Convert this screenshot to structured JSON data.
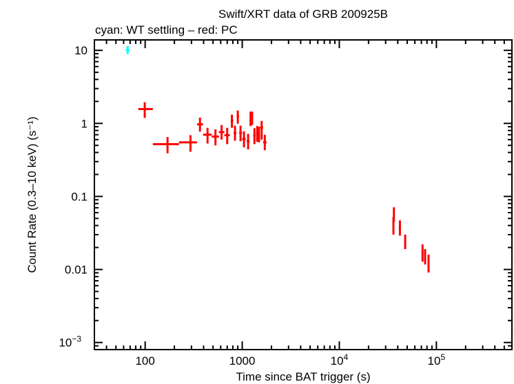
{
  "chart_data": {
    "type": "scatter",
    "title": "Swift/XRT data of GRB 200925B",
    "subtitle": "cyan: WT settling – red: PC",
    "xlabel": "Time since BAT trigger (s)",
    "ylabel": "Count Rate (0.3–10 keV) (s⁻¹)",
    "xscale": "log",
    "yscale": "log",
    "xlim": [
      30,
      600000
    ],
    "ylim": [
      0.0008,
      13.9
    ],
    "xticks": [
      {
        "v": 100,
        "label": "100"
      },
      {
        "v": 1000,
        "label": "1000"
      },
      {
        "v": 10000,
        "label": "10",
        "exp": "4"
      },
      {
        "v": 100000,
        "label": "10",
        "exp": "5"
      }
    ],
    "yticks": [
      {
        "v": 10,
        "label": "10"
      },
      {
        "v": 1,
        "label": "1"
      },
      {
        "v": 0.1,
        "label": "0.1"
      },
      {
        "v": 0.01,
        "label": "0.01"
      },
      {
        "v": 0.001,
        "label": "10",
        "exp": "−3"
      }
    ],
    "grid": false,
    "series": [
      {
        "name": "WT settling",
        "color": "#00ffff",
        "points": [
          {
            "x": 66,
            "xlo": 63,
            "xhi": 69,
            "y": 10.1,
            "ylo": 8.9,
            "yhi": 11.5
          }
        ]
      },
      {
        "name": "PC",
        "color": "#ff0000",
        "points": [
          {
            "x": 99,
            "xlo": 85,
            "xhi": 120,
            "y": 1.57,
            "ylo": 1.19,
            "yhi": 1.95
          },
          {
            "x": 170,
            "xlo": 120,
            "xhi": 223,
            "y": 0.52,
            "ylo": 0.39,
            "yhi": 0.65
          },
          {
            "x": 293,
            "xlo": 223,
            "xhi": 342,
            "y": 0.55,
            "ylo": 0.41,
            "yhi": 0.69
          },
          {
            "x": 367,
            "xlo": 342,
            "xhi": 395,
            "y": 0.97,
            "ylo": 0.77,
            "yhi": 1.2
          },
          {
            "x": 439,
            "xlo": 395,
            "xhi": 485,
            "y": 0.7,
            "ylo": 0.53,
            "yhi": 0.87
          },
          {
            "x": 530,
            "xlo": 485,
            "xhi": 575,
            "y": 0.66,
            "ylo": 0.5,
            "yhi": 0.83
          },
          {
            "x": 613,
            "xlo": 575,
            "xhi": 655,
            "y": 0.76,
            "ylo": 0.6,
            "yhi": 0.95
          },
          {
            "x": 700,
            "xlo": 655,
            "xhi": 745,
            "y": 0.69,
            "ylo": 0.52,
            "yhi": 0.87
          },
          {
            "x": 783,
            "xlo": 760,
            "xhi": 810,
            "y": 1.09,
            "ylo": 0.87,
            "yhi": 1.32
          },
          {
            "x": 842,
            "xlo": 815,
            "xhi": 870,
            "y": 0.74,
            "ylo": 0.58,
            "yhi": 0.93
          },
          {
            "x": 900,
            "xlo": 875,
            "xhi": 925,
            "y": 1.26,
            "ylo": 0.99,
            "yhi": 1.5
          },
          {
            "x": 961,
            "xlo": 930,
            "xhi": 995,
            "y": 0.74,
            "ylo": 0.57,
            "yhi": 0.93
          },
          {
            "x": 1042,
            "xlo": 1000,
            "xhi": 1085,
            "y": 0.61,
            "ylo": 0.47,
            "yhi": 0.78
          },
          {
            "x": 1150,
            "xlo": 1110,
            "xhi": 1190,
            "y": 0.57,
            "ylo": 0.44,
            "yhi": 0.72
          },
          {
            "x": 1218,
            "xlo": 1195,
            "xhi": 1240,
            "y": 1.19,
            "ylo": 0.92,
            "yhi": 1.45
          },
          {
            "x": 1264,
            "xlo": 1242,
            "xhi": 1290,
            "y": 1.21,
            "ylo": 0.95,
            "yhi": 1.45
          },
          {
            "x": 1335,
            "xlo": 1295,
            "xhi": 1375,
            "y": 0.68,
            "ylo": 0.52,
            "yhi": 0.86
          },
          {
            "x": 1425,
            "xlo": 1390,
            "xhi": 1460,
            "y": 0.73,
            "ylo": 0.56,
            "yhi": 0.92
          },
          {
            "x": 1488,
            "xlo": 1460,
            "xhi": 1520,
            "y": 0.71,
            "ylo": 0.55,
            "yhi": 0.9
          },
          {
            "x": 1585,
            "xlo": 1530,
            "xhi": 1640,
            "y": 0.88,
            "ylo": 0.6,
            "yhi": 1.08
          },
          {
            "x": 1708,
            "xlo": 1640,
            "xhi": 1780,
            "y": 0.55,
            "ylo": 0.43,
            "yhi": 0.7
          },
          {
            "x": 36500,
            "xlo": 35800,
            "xhi": 37300,
            "y": 0.057,
            "ylo": 0.045,
            "yhi": 0.071
          },
          {
            "x": 36100,
            "xlo": 35300,
            "xhi": 36900,
            "y": 0.041,
            "ylo": 0.03,
            "yhi": 0.052
          },
          {
            "x": 42100,
            "xlo": 41000,
            "xhi": 43200,
            "y": 0.0375,
            "ylo": 0.029,
            "yhi": 0.047
          },
          {
            "x": 47700,
            "xlo": 46500,
            "xhi": 48900,
            "y": 0.0237,
            "ylo": 0.019,
            "yhi": 0.03
          },
          {
            "x": 72000,
            "xlo": 70500,
            "xhi": 73500,
            "y": 0.0171,
            "ylo": 0.0128,
            "yhi": 0.022
          },
          {
            "x": 76500,
            "xlo": 75000,
            "xhi": 78000,
            "y": 0.0157,
            "ylo": 0.0117,
            "yhi": 0.019
          },
          {
            "x": 83000,
            "xlo": 81500,
            "xhi": 84500,
            "y": 0.0129,
            "ylo": 0.0091,
            "yhi": 0.016
          }
        ]
      }
    ]
  }
}
